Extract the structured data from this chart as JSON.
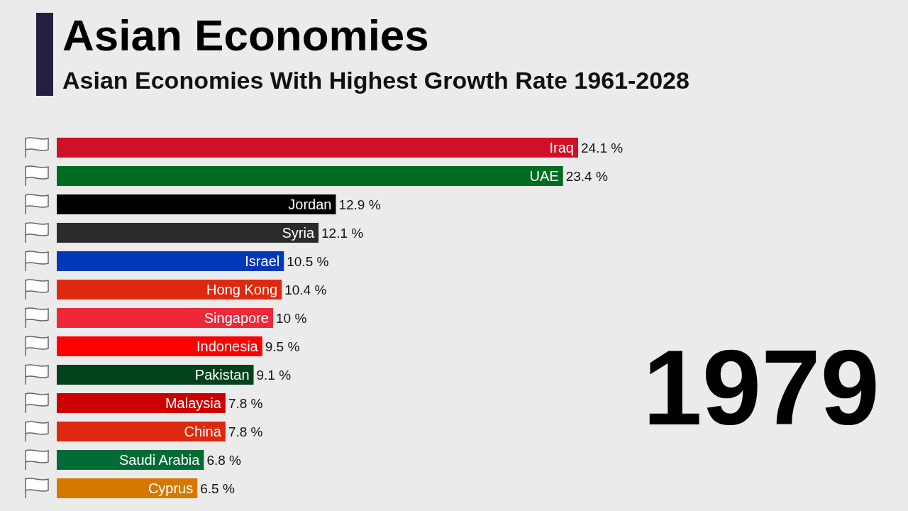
{
  "chart_data": {
    "type": "bar",
    "orientation": "horizontal",
    "title": "Asian Economies",
    "subtitle": "Asian Economies With Highest Growth Rate 1961-2028",
    "categories": [
      "Iraq",
      "UAE",
      "Jordan",
      "Syria",
      "Israel",
      "Hong Kong",
      "Singapore",
      "Indonesia",
      "Pakistan",
      "Malaysia",
      "China",
      "Saudi Arabia",
      "Cyprus"
    ],
    "values": [
      24.1,
      23.4,
      12.9,
      12.1,
      10.5,
      10.4,
      10,
      9.5,
      9.1,
      7.8,
      7.8,
      6.8,
      6.5
    ],
    "value_labels": [
      "24.1 %",
      "23.4 %",
      "12.9 %",
      "12.1 %",
      "10.5 %",
      "10.4 %",
      "10 %",
      "9.5 %",
      "9.1 %",
      "7.8 %",
      "7.8 %",
      "6.8 %",
      "6.5 %"
    ],
    "colors": [
      "#ce1126",
      "#006c22",
      "#000000",
      "#2b2b2b",
      "#0038b8",
      "#de2910",
      "#ed2939",
      "#ff0000",
      "#01411c",
      "#cc0001",
      "#de2910",
      "#006c35",
      "#d57800"
    ],
    "annotations": [
      "1979"
    ],
    "grid": false,
    "legend": false
  }
}
